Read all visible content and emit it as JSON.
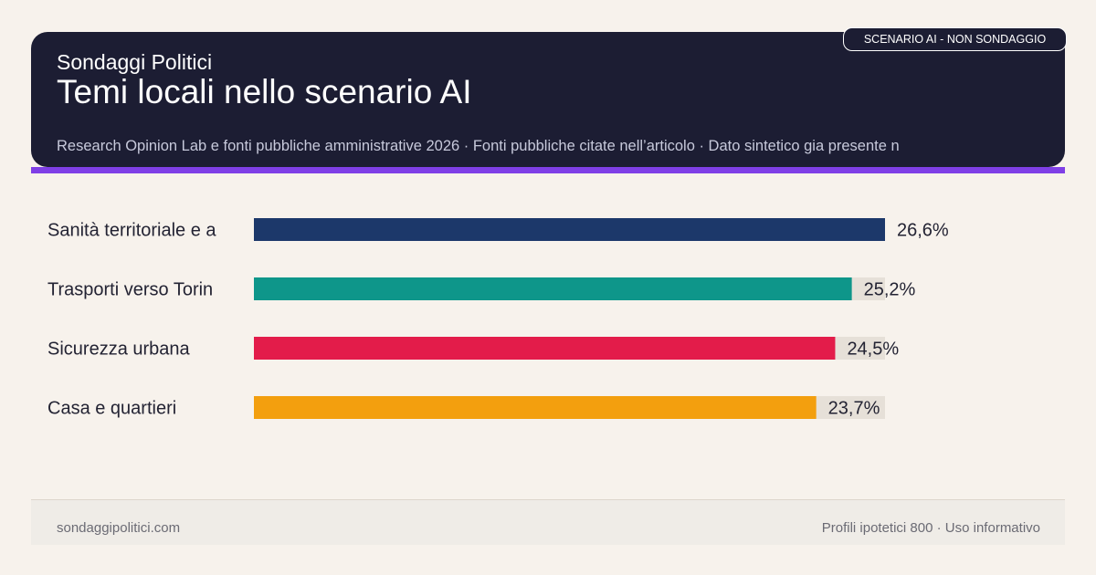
{
  "header": {
    "brand": "Sondaggi Politici",
    "title": "Temi locali nello scenario AI",
    "sources": "Research Opinion Lab e fonti pubbliche amministrative 2026 · Fonti pubbliche citate nell’articolo · Dato sintetico gia presente n",
    "badge": "SCENARIO AI - NON SONDAGGIO"
  },
  "footer": {
    "site": "sondaggipolitici.com",
    "note": "Profili ipotetici 800 · Uso informativo"
  },
  "colors": {
    "header_bg": "#1c1d33",
    "accent": "#7f3fe6",
    "track": "#e6e0d8"
  },
  "chart_data": {
    "type": "bar",
    "orientation": "horizontal",
    "categories": [
      "Sanità territoriale e a",
      "Trasporti verso Torin",
      "Sicurezza urbana",
      "Casa e quartieri"
    ],
    "values": [
      26.6,
      25.2,
      24.5,
      23.7
    ],
    "value_labels": [
      "26,6%",
      "25,2%",
      "24,5%",
      "23,7%"
    ],
    "colors": [
      "#1c386a",
      "#0e968a",
      "#e31c4a",
      "#f39f0e"
    ],
    "xlim": [
      0,
      26.6
    ],
    "grid": false,
    "legend": "none"
  }
}
